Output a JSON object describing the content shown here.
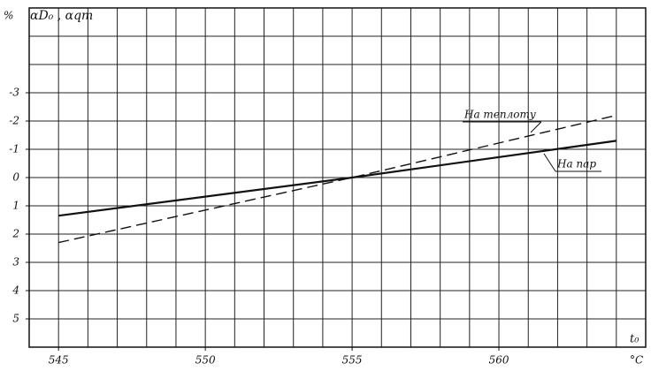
{
  "chart_data": {
    "type": "line",
    "y_label": "αD₀ , αqт",
    "y_unit": "%",
    "x_label": "t₀",
    "x_unit": "°C",
    "xlim": [
      544,
      565
    ],
    "ylim": [
      6,
      -6
    ],
    "xticks": [
      545,
      550,
      555,
      560
    ],
    "yticks": [
      -3,
      -2,
      -1,
      0,
      1,
      2,
      3,
      4,
      5
    ],
    "grid": true,
    "xgrid_step": 1,
    "ygrid_step": 1,
    "series": [
      {
        "name": "На теплоту",
        "color": "#111111",
        "linestyle": "dashed",
        "x": [
          545,
          555,
          564
        ],
        "values": [
          2.3,
          0,
          -2.2
        ]
      },
      {
        "name": "На пар",
        "color": "#111111",
        "linestyle": "solid",
        "x": [
          545,
          555,
          564
        ],
        "values": [
          1.35,
          0,
          -1.3
        ]
      }
    ]
  }
}
